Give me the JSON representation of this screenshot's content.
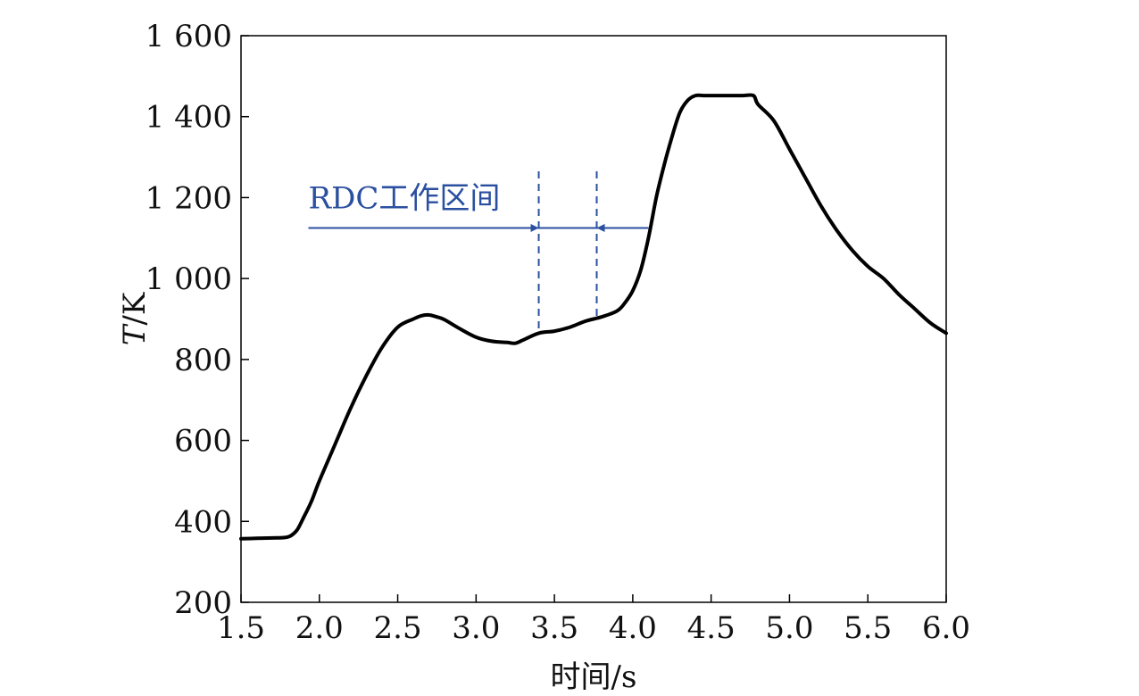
{
  "chart_data": {
    "type": "line",
    "xlabel": "时间/s",
    "ylabel_italic": "T",
    "ylabel_rest": "/K",
    "xlim": [
      1.5,
      6.0
    ],
    "ylim": [
      200,
      1600
    ],
    "xticks": [
      1.5,
      2.0,
      2.5,
      3.0,
      3.5,
      4.0,
      4.5,
      5.0,
      5.5,
      6.0
    ],
    "xtick_labels": [
      "1.5",
      "2.0",
      "2.5",
      "3.0",
      "3.5",
      "4.0",
      "4.5",
      "5.0",
      "5.5",
      "6.0"
    ],
    "yticks": [
      200,
      400,
      600,
      800,
      1000,
      1200,
      1400,
      1600
    ],
    "ytick_labels": [
      "200",
      "400",
      "600",
      "800",
      "1 000",
      "1 200",
      "1 400",
      "1 600"
    ],
    "grid": false,
    "series": [
      {
        "color": "#000000",
        "x": [
          1.5,
          1.6,
          1.7,
          1.78,
          1.82,
          1.86,
          1.9,
          1.95,
          2.0,
          2.1,
          2.2,
          2.3,
          2.4,
          2.5,
          2.6,
          2.65,
          2.7,
          2.75,
          2.8,
          2.9,
          3.0,
          3.1,
          3.2,
          3.25,
          3.3,
          3.4,
          3.5,
          3.6,
          3.7,
          3.8,
          3.9,
          3.95,
          4.0,
          4.05,
          4.1,
          4.15,
          4.2,
          4.25,
          4.3,
          4.35,
          4.4,
          4.45,
          4.5,
          4.6,
          4.7,
          4.77,
          4.8,
          4.9,
          5.0,
          5.1,
          5.2,
          5.3,
          5.4,
          5.5,
          5.6,
          5.7,
          5.8,
          5.9,
          6.0
        ],
        "y": [
          357,
          358,
          359,
          360,
          365,
          380,
          410,
          450,
          500,
          590,
          680,
          760,
          830,
          880,
          900,
          908,
          910,
          905,
          898,
          875,
          855,
          845,
          842,
          840,
          848,
          865,
          870,
          880,
          895,
          905,
          920,
          940,
          970,
          1020,
          1100,
          1200,
          1280,
          1350,
          1410,
          1440,
          1452,
          1452,
          1452,
          1452,
          1452,
          1452,
          1430,
          1390,
          1320,
          1250,
          1180,
          1120,
          1070,
          1030,
          1000,
          960,
          925,
          890,
          865
        ]
      }
    ],
    "annotation": {
      "text": "RDC工作区间",
      "dashed_lines_x": [
        3.4,
        3.77
      ],
      "arrow_y": 1125,
      "arrow_left_from_x": 1.93,
      "arrow_right_from_x": 4.1
    }
  }
}
